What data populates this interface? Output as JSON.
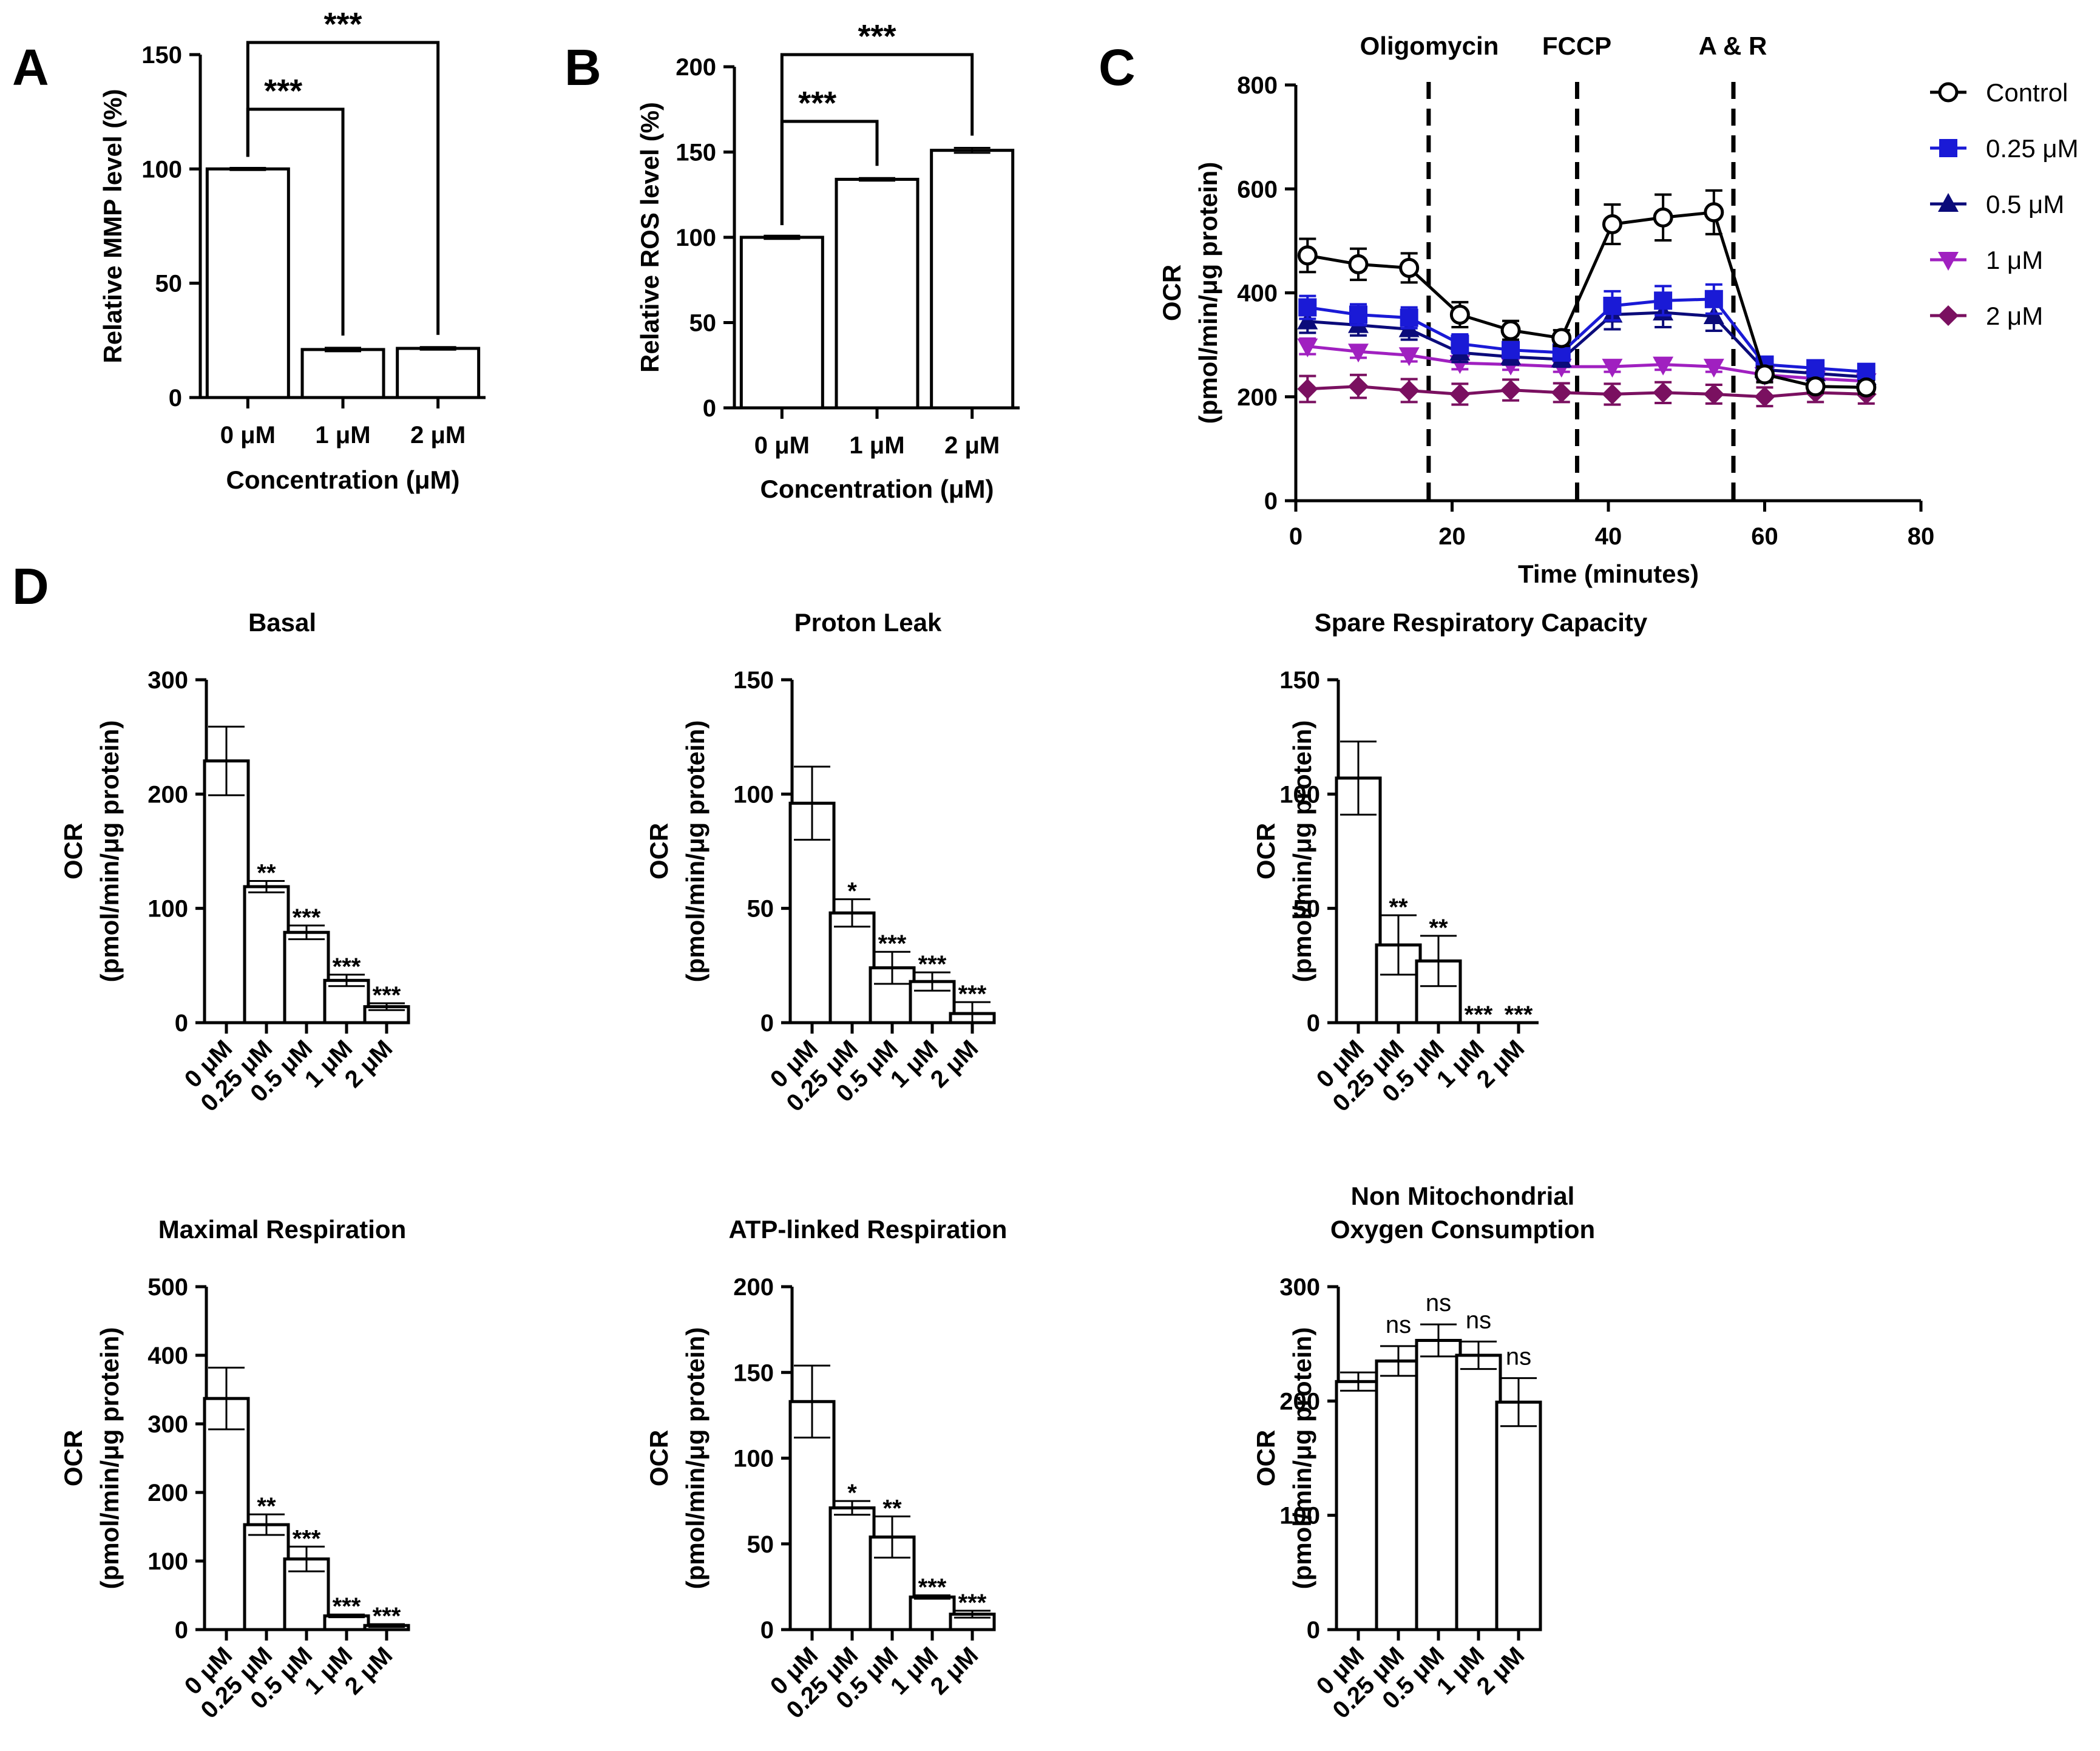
{
  "panels": {
    "A": "A",
    "B": "B",
    "C": "C",
    "D": "D"
  },
  "chart_data": [
    {
      "id": "A",
      "type": "bar",
      "title": "",
      "categories": [
        "0 μM",
        "1 μM",
        "2 μM"
      ],
      "values": [
        100,
        21,
        21.5
      ],
      "errors": [
        0.5,
        0.8,
        0.6
      ],
      "xlabel": "Concentration (μM)",
      "ylabel": "Relative MMP level (%)",
      "ylim": [
        0,
        150
      ],
      "yticks": [
        0,
        50,
        100,
        150
      ],
      "comparisons": [
        {
          "from": 0,
          "to": 1,
          "label": "***"
        },
        {
          "from": 0,
          "to": 2,
          "label": "***"
        }
      ]
    },
    {
      "id": "B",
      "type": "bar",
      "title": "",
      "categories": [
        "0 μM",
        "1 μM",
        "2 μM"
      ],
      "values": [
        100,
        134,
        151
      ],
      "errors": [
        1,
        0.8,
        1.5
      ],
      "xlabel": "Concentration (μM)",
      "ylabel": "Relative ROS level (%)",
      "ylim": [
        0,
        200
      ],
      "yticks": [
        0,
        50,
        100,
        150,
        200
      ],
      "comparisons": [
        {
          "from": 0,
          "to": 1,
          "label": "***"
        },
        {
          "from": 0,
          "to": 2,
          "label": "***"
        }
      ]
    },
    {
      "id": "C",
      "type": "line",
      "title": "",
      "xlabel": "Time (minutes)",
      "ylabel": "OCR",
      "ylabel2": "(pmol/min/μg protein)",
      "xlim": [
        0,
        80
      ],
      "ylim": [
        0,
        800
      ],
      "xticks": [
        0,
        20,
        40,
        60,
        80
      ],
      "yticks": [
        0,
        200,
        400,
        600,
        800
      ],
      "injections": [
        {
          "time": 17,
          "label": "Oligomycin"
        },
        {
          "time": 36,
          "label": "FCCP"
        },
        {
          "time": 56,
          "label": "A & R"
        }
      ],
      "x": [
        1.5,
        8,
        14.5,
        21,
        27.5,
        34,
        40.5,
        47,
        53.5,
        60,
        66.5,
        73
      ],
      "series": [
        {
          "name": "Control",
          "color": "#000000",
          "marker": "circle-open",
          "values": [
            472,
            455,
            448,
            358,
            328,
            313,
            532,
            545,
            555,
            243,
            220,
            218
          ],
          "errors": [
            32,
            30,
            28,
            24,
            18,
            15,
            38,
            44,
            42,
            15,
            12,
            12
          ]
        },
        {
          "name": "0.25 μM",
          "color": "#1a1ad6",
          "marker": "square",
          "values": [
            372,
            358,
            352,
            302,
            290,
            285,
            375,
            385,
            388,
            262,
            255,
            248
          ],
          "errors": [
            22,
            20,
            20,
            18,
            15,
            14,
            28,
            28,
            28,
            14,
            12,
            12
          ]
        },
        {
          "name": "0.5 μM",
          "color": "#0b0b7a",
          "marker": "triangle-up",
          "values": [
            345,
            338,
            330,
            285,
            277,
            272,
            358,
            362,
            355,
            252,
            245,
            238
          ],
          "errors": [
            22,
            20,
            20,
            18,
            15,
            14,
            28,
            28,
            28,
            14,
            12,
            12
          ]
        },
        {
          "name": "1 μM",
          "color": "#a020c0",
          "marker": "triangle-down",
          "values": [
            297,
            287,
            280,
            265,
            262,
            258,
            258,
            262,
            258,
            242,
            235,
            230
          ],
          "errors": [
            15,
            12,
            12,
            12,
            10,
            10,
            10,
            10,
            10,
            10,
            10,
            10
          ]
        },
        {
          "name": "2 μM",
          "color": "#7a1060",
          "marker": "diamond",
          "values": [
            215,
            220,
            212,
            205,
            213,
            208,
            205,
            208,
            205,
            200,
            208,
            205
          ],
          "errors": [
            25,
            22,
            22,
            20,
            20,
            18,
            20,
            20,
            18,
            18,
            18,
            18
          ]
        }
      ]
    },
    {
      "id": "D1",
      "type": "bar",
      "title": "Basal",
      "categories": [
        "0 μM",
        "0.25 μM",
        "0.5 μM",
        "1 μM",
        "2 μM"
      ],
      "values": [
        229,
        119,
        79,
        37,
        14
      ],
      "errors": [
        30,
        5,
        6,
        5,
        3
      ],
      "significance": [
        "",
        "**",
        "***",
        "***",
        "***"
      ],
      "ylabel": "OCR",
      "ylabel2": "(pmol/min/μg protein)",
      "ylim": [
        0,
        300
      ],
      "yticks": [
        0,
        100,
        200,
        300
      ]
    },
    {
      "id": "D2",
      "type": "bar",
      "title": "Proton Leak",
      "categories": [
        "0 μM",
        "0.25 μM",
        "0.5 μM",
        "1 μM",
        "2 μM"
      ],
      "values": [
        96,
        48,
        24,
        18,
        4
      ],
      "errors": [
        16,
        6,
        7,
        4,
        5
      ],
      "significance": [
        "",
        "*",
        "***",
        "***",
        "***"
      ],
      "ylabel": "OCR",
      "ylabel2": "(pmol/min/μg protein)",
      "ylim": [
        0,
        150
      ],
      "yticks": [
        0,
        50,
        100,
        150
      ]
    },
    {
      "id": "D3",
      "type": "bar",
      "title": "Spare Respiratory Capacity",
      "categories": [
        "0 μM",
        "0.25 μM",
        "0.5 μM",
        "1 μM",
        "2 μM"
      ],
      "values": [
        107,
        34,
        27,
        0,
        0
      ],
      "errors": [
        16,
        13,
        11,
        0,
        0
      ],
      "significance": [
        "",
        "**",
        "**",
        "***",
        "***"
      ],
      "ylabel": "OCR",
      "ylabel2": "(pmol/min/μg protein)",
      "ylim": [
        0,
        150
      ],
      "yticks": [
        0,
        50,
        100,
        150
      ]
    },
    {
      "id": "D4",
      "type": "bar",
      "title": "Maximal Respiration",
      "categories": [
        "0 μM",
        "0.25 μM",
        "0.5 μM",
        "1 μM",
        "2 μM"
      ],
      "values": [
        337,
        153,
        103,
        20,
        6
      ],
      "errors": [
        45,
        15,
        18,
        2,
        2
      ],
      "significance": [
        "",
        "**",
        "***",
        "***",
        "***"
      ],
      "ylabel": "OCR",
      "ylabel2": "(pmol/min/μg protein)",
      "ylim": [
        0,
        500
      ],
      "yticks": [
        0,
        100,
        200,
        300,
        400,
        500
      ]
    },
    {
      "id": "D5",
      "type": "bar",
      "title": "ATP-linked Respiration",
      "categories": [
        "0 μM",
        "0.25 μM",
        "0.5 μM",
        "1 μM",
        "2 μM"
      ],
      "values": [
        133,
        71,
        54,
        19,
        9
      ],
      "errors": [
        21,
        4,
        12,
        1,
        2
      ],
      "significance": [
        "",
        "*",
        "**",
        "***",
        "***"
      ],
      "ylabel": "OCR",
      "ylabel2": "(pmol/min/μg protein)",
      "ylim": [
        0,
        200
      ],
      "yticks": [
        0,
        50,
        100,
        150,
        200
      ]
    },
    {
      "id": "D6",
      "type": "bar",
      "title": "Non Mitochondrial",
      "title2": "Oxygen Consumption",
      "categories": [
        "0 μM",
        "0.25 μM",
        "0.5 μM",
        "1 μM",
        "2 μM"
      ],
      "values": [
        217,
        235,
        253,
        240,
        199
      ],
      "errors": [
        8,
        13,
        14,
        12,
        21
      ],
      "significance": [
        "",
        "ns",
        "ns",
        "ns",
        "ns"
      ],
      "ylabel": "OCR",
      "ylabel2": "(pmol/min/μg protein)",
      "ylim": [
        0,
        300
      ],
      "yticks": [
        0,
        100,
        200,
        300
      ]
    }
  ]
}
